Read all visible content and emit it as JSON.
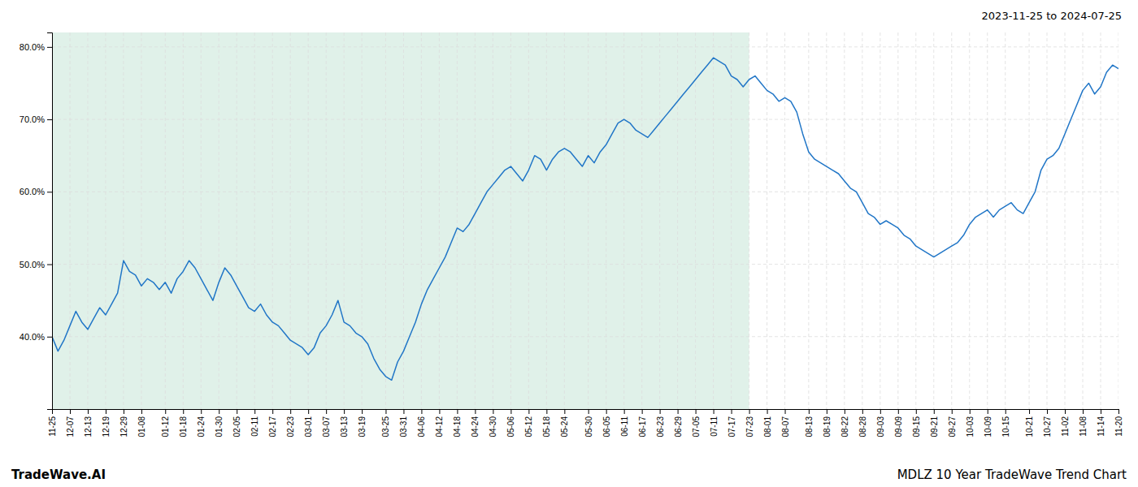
{
  "chart_data": {
    "type": "line",
    "title": "MDLZ 10 Year TradeWave Trend Chart",
    "subtitle": "2023-11-25 to 2024-07-25",
    "annotations": [
      "TradeWave.AI"
    ],
    "categories": [
      "11-25",
      null,
      null,
      "12-07",
      null,
      null,
      "12-13",
      null,
      null,
      "12-19",
      null,
      null,
      "12-29",
      null,
      null,
      "01-08",
      null,
      null,
      null,
      "01-12",
      null,
      null,
      "01-18",
      null,
      null,
      "01-24",
      null,
      null,
      "01-30",
      null,
      null,
      "02-05",
      null,
      null,
      "02-11",
      null,
      null,
      "02-17",
      null,
      null,
      "02-23",
      null,
      null,
      "03-01",
      null,
      null,
      "03-07",
      null,
      null,
      "03-13",
      null,
      null,
      "03-19",
      null,
      null,
      null,
      "03-25",
      null,
      null,
      "03-31",
      null,
      null,
      "04-06",
      null,
      null,
      "04-12",
      null,
      null,
      "04-18",
      null,
      null,
      "04-24",
      null,
      null,
      "04-30",
      null,
      null,
      "05-06",
      null,
      null,
      "05-12",
      null,
      null,
      "05-18",
      null,
      null,
      "05-24",
      null,
      null,
      null,
      "05-30",
      null,
      null,
      "06-05",
      null,
      null,
      "06-11",
      null,
      null,
      "06-17",
      null,
      null,
      "06-23",
      null,
      null,
      "06-29",
      null,
      null,
      "07-05",
      null,
      null,
      "07-11",
      null,
      null,
      "07-17",
      null,
      null,
      "07-23",
      null,
      null,
      "08-01",
      null,
      null,
      "08-07",
      null,
      null,
      null,
      "08-13",
      null,
      null,
      "08-19",
      null,
      null,
      "08-22",
      null,
      null,
      "08-28",
      null,
      null,
      "09-03",
      null,
      null,
      "09-09",
      null,
      null,
      "09-15",
      null,
      null,
      "09-21",
      null,
      null,
      "09-27",
      null,
      null,
      "10-03",
      null,
      null,
      "10-09",
      null,
      null,
      "10-15",
      null,
      null,
      null,
      "10-21",
      null,
      null,
      "10-27",
      null,
      null,
      "11-02",
      null,
      null,
      "11-08",
      null,
      null,
      "11-14",
      null,
      null,
      "11-20"
    ],
    "values": [
      40.0,
      38.0,
      39.5,
      41.5,
      43.5,
      42.0,
      41.0,
      42.5,
      44.0,
      43.0,
      44.5,
      46.0,
      50.5,
      49.0,
      48.5,
      47.0,
      48.0,
      47.5,
      46.5,
      47.5,
      46.0,
      48.0,
      49.0,
      50.5,
      49.5,
      48.0,
      46.5,
      45.0,
      47.5,
      49.5,
      48.5,
      47.0,
      45.5,
      44.0,
      43.5,
      44.5,
      43.0,
      42.0,
      41.5,
      40.5,
      39.5,
      39.0,
      38.5,
      37.5,
      38.5,
      40.5,
      41.5,
      43.0,
      45.0,
      42.0,
      41.5,
      40.5,
      40.0,
      39.0,
      37.0,
      35.5,
      34.5,
      34.0,
      36.5,
      38.0,
      40.0,
      42.0,
      44.5,
      46.5,
      48.0,
      49.5,
      51.0,
      53.0,
      55.0,
      54.5,
      55.5,
      57.0,
      58.5,
      60.0,
      61.0,
      62.0,
      63.0,
      63.5,
      62.5,
      61.5,
      63.0,
      65.0,
      64.5,
      63.0,
      64.5,
      65.5,
      66.0,
      65.5,
      64.5,
      63.5,
      65.0,
      64.0,
      65.5,
      66.5,
      68.0,
      69.5,
      70.0,
      69.5,
      68.5,
      68.0,
      67.5,
      68.5,
      69.5,
      70.5,
      71.5,
      72.5,
      73.5,
      74.5,
      75.5,
      76.5,
      77.5,
      78.5,
      78.0,
      77.5,
      76.0,
      75.5,
      74.5,
      75.5,
      76.0,
      75.0,
      74.0,
      73.5,
      72.5,
      73.0,
      72.5,
      71.0,
      68.0,
      65.5,
      64.5,
      64.0,
      63.5,
      63.0,
      62.5,
      61.5,
      60.5,
      60.0,
      58.5,
      57.0,
      56.5,
      55.5,
      56.0,
      55.5,
      55.0,
      54.0,
      53.5,
      52.5,
      52.0,
      51.5,
      51.0,
      51.5,
      52.0,
      52.5,
      53.0,
      54.0,
      55.5,
      56.5,
      57.0,
      57.5,
      56.5,
      57.5,
      58.0,
      58.5,
      57.5,
      57.0,
      58.5,
      60.0,
      63.0,
      64.5,
      65.0,
      66.0,
      68.0,
      70.0,
      72.0,
      74.0,
      75.0,
      73.5,
      74.5,
      76.5,
      77.5,
      77.0
    ],
    "color": "#2176c7",
    "ylim": [
      30,
      82
    ],
    "yticks": [
      {
        "value": 40.0,
        "label": "40.0%"
      },
      {
        "value": 50.0,
        "label": "50.0%"
      },
      {
        "value": 60.0,
        "label": "60.0%"
      },
      {
        "value": 70.0,
        "label": "70.0%"
      },
      {
        "value": 80.0,
        "label": "80.0%"
      }
    ],
    "grid": true,
    "shaded_region": {
      "from": "11-25",
      "to": "07-23",
      "color": "#d6ece1"
    }
  }
}
